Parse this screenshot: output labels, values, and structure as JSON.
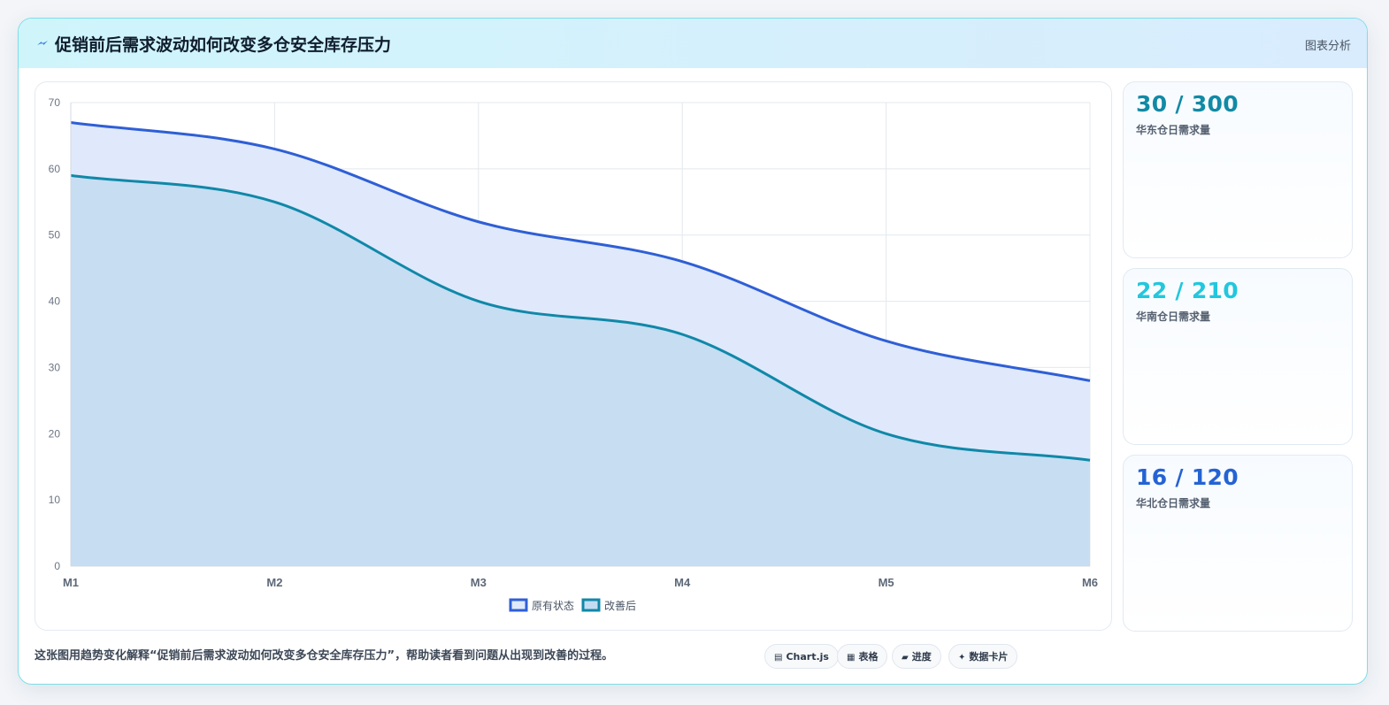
{
  "header": {
    "title": "促销前后需求波动如何改变多仓安全库存压力",
    "tag": "图表分析"
  },
  "chart_data": {
    "type": "area",
    "x": [
      "M1",
      "M2",
      "M3",
      "M4",
      "M5",
      "M6"
    ],
    "ylim": [
      0,
      70
    ],
    "yticks": [
      0,
      10,
      20,
      30,
      40,
      50,
      60,
      70
    ],
    "grid": true,
    "legend_position": "bottom",
    "series": [
      {
        "name": "原有状态",
        "values": [
          67,
          63,
          52,
          46,
          34,
          28
        ],
        "color": "#2f5fd6",
        "fill": "#dfe9fb"
      },
      {
        "name": "改善后",
        "values": [
          59,
          55,
          40,
          35,
          20,
          16
        ],
        "color": "#1088a8",
        "fill": "#c4dcf1"
      }
    ]
  },
  "cards": [
    {
      "value": "30 / 300",
      "label": "华东仓日需求量",
      "color": "#118aa6"
    },
    {
      "value": "22 / 210",
      "label": "华南仓日需求量",
      "color": "#22c7de"
    },
    {
      "value": "16 / 120",
      "label": "华北仓日需求量",
      "color": "#2563d4"
    }
  ],
  "footer": {
    "text": "这张图用趋势变化解释“促销前后需求波动如何改变多仓安全库存压力”，帮助读者看到问题从出现到改善的过程。",
    "chips": [
      {
        "icon": "▤",
        "label": "Chart.js"
      },
      {
        "icon": "▦",
        "label": "表格"
      },
      {
        "icon": "▰",
        "label": "进度"
      },
      {
        "icon": "✦",
        "label": "数据卡片"
      }
    ]
  }
}
